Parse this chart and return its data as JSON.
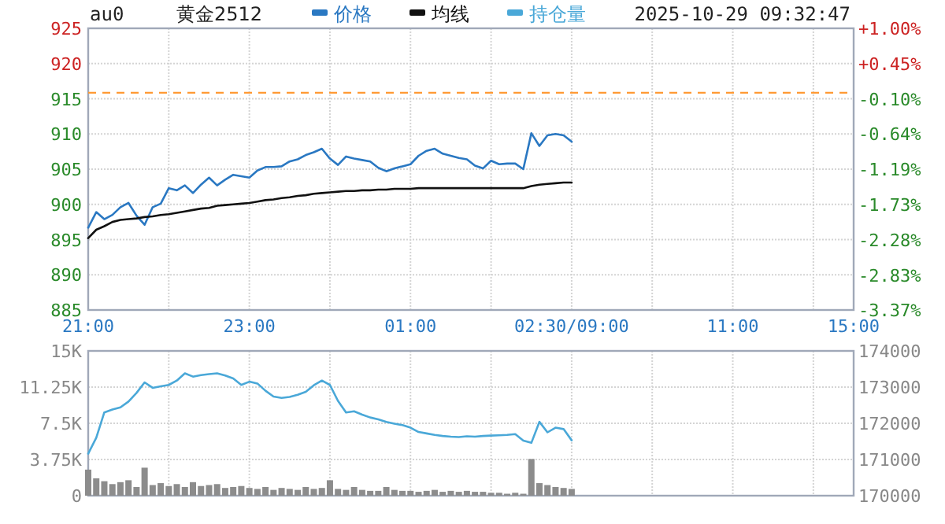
{
  "chart_data": [
    {
      "type": "line",
      "title": "au0",
      "subtitle": "黄金2512",
      "annotations": [
        "2025-10-29 09:32:47"
      ],
      "legend": "top",
      "grid": true,
      "categories": [
        "21:00",
        null,
        null,
        null,
        null,
        null,
        null,
        null,
        null,
        null,
        null,
        null,
        null,
        null,
        null,
        null,
        null,
        null,
        null,
        null,
        "23:00",
        null,
        null,
        null,
        null,
        null,
        null,
        null,
        null,
        null,
        null,
        null,
        null,
        null,
        null,
        null,
        null,
        null,
        null,
        null,
        "01:00",
        null,
        null,
        null,
        null,
        null,
        null,
        null,
        null,
        null,
        null,
        null,
        null,
        null,
        null,
        null,
        null,
        null,
        null,
        null,
        "02:30/09:00",
        null,
        null,
        null,
        null,
        null,
        null,
        null,
        null,
        null,
        null,
        null,
        null,
        null,
        null,
        null,
        null,
        null,
        null,
        null,
        "11:00",
        null,
        null,
        null,
        null,
        null,
        null,
        null,
        null,
        null,
        null,
        null,
        null,
        null,
        null,
        "15:00"
      ],
      "ylim": [
        885,
        925
      ],
      "yticks": [
        885,
        890,
        895,
        900,
        905,
        910,
        915,
        920,
        925
      ],
      "y2lim": [
        -3.37,
        1.0
      ],
      "y2ticks": [
        {
          "value": -3.37,
          "label": "-3.37%"
        },
        {
          "value": -2.83,
          "label": "-2.83%"
        },
        {
          "value": -2.28,
          "label": "-2.28%"
        },
        {
          "value": -1.73,
          "label": "-1.73%"
        },
        {
          "value": -1.19,
          "label": "-1.19%"
        },
        {
          "value": -0.64,
          "label": "-0.64%"
        },
        {
          "value": -0.1,
          "label": "-0.10%"
        },
        {
          "value": 0.45,
          "label": "+0.45%"
        },
        {
          "value": 1.0,
          "label": "+1.00%"
        }
      ],
      "ref_lines": [
        {
          "axis": "y",
          "value": 915.85,
          "color": "#ff9933",
          "line_style": "dashed"
        }
      ],
      "series": [
        {
          "name": "价格",
          "color": "#2a78c2",
          "values": [
            896.7,
            898.9,
            897.9,
            898.5,
            899.6,
            900.2,
            898.4,
            897.1,
            899.6,
            900.1,
            902.3,
            902,
            902.7,
            901.6,
            902.8,
            903.8,
            902.7,
            903.5,
            904.2,
            904,
            903.8,
            904.8,
            905.3,
            905.3,
            905.4,
            906.1,
            906.4,
            907,
            907.4,
            907.9,
            906.5,
            905.6,
            906.8,
            906.5,
            906.3,
            906.1,
            905.2,
            904.7,
            905.1,
            905.4,
            905.7,
            906.9,
            907.6,
            907.9,
            907.2,
            906.9,
            906.6,
            906.4,
            905.5,
            905.1,
            906.2,
            905.7,
            905.8,
            905.8,
            905,
            910.1,
            908.3,
            909.8,
            910,
            909.8,
            908.9,
            null,
            null,
            null,
            null,
            null,
            null,
            null,
            null,
            null,
            null,
            null,
            null,
            null,
            null,
            null,
            null,
            null,
            null,
            null,
            null,
            null,
            null,
            null,
            null,
            null,
            null,
            null,
            null,
            null,
            null,
            null,
            null,
            null,
            null,
            null
          ]
        },
        {
          "name": "均线",
          "color": "#111111",
          "values": [
            895.2,
            896.4,
            896.9,
            897.5,
            897.8,
            897.9,
            898,
            898.2,
            898.3,
            898.5,
            898.6,
            898.8,
            899,
            899.2,
            899.4,
            899.5,
            899.8,
            899.9,
            900,
            900.1,
            900.2,
            900.4,
            900.6,
            900.7,
            900.9,
            901,
            901.2,
            901.3,
            901.5,
            901.6,
            901.7,
            901.8,
            901.9,
            901.9,
            902,
            902,
            902.1,
            902.1,
            902.2,
            902.2,
            902.2,
            902.3,
            902.3,
            902.3,
            902.3,
            902.3,
            902.3,
            902.3,
            902.3,
            902.3,
            902.3,
            902.3,
            902.3,
            902.3,
            902.3,
            902.6,
            902.8,
            902.9,
            903,
            903.1,
            903.1,
            null,
            null,
            null,
            null,
            null,
            null,
            null,
            null,
            null,
            null,
            null,
            null,
            null,
            null,
            null,
            null,
            null,
            null,
            null,
            null,
            null,
            null,
            null,
            null,
            null,
            null,
            null,
            null,
            null,
            null,
            null,
            null,
            null,
            null,
            null
          ]
        }
      ]
    },
    {
      "type": "line",
      "legend": "top",
      "grid": true,
      "tick_labels": "y",
      "categories": [
        null,
        null,
        null,
        null,
        null,
        null,
        null,
        null,
        null,
        null,
        null,
        null,
        null,
        null,
        null,
        null,
        null,
        null,
        null,
        null,
        null,
        null,
        null,
        null,
        null,
        null,
        null,
        null,
        null,
        null,
        null,
        null,
        null,
        null,
        null,
        null,
        null,
        null,
        null,
        null,
        null,
        null,
        null,
        null,
        null,
        null,
        null,
        null,
        null,
        null,
        null,
        null,
        null,
        null,
        null,
        null,
        null,
        null,
        null,
        null,
        null,
        null,
        null,
        null,
        null,
        null,
        null,
        null,
        null,
        null,
        null,
        null,
        null,
        null,
        null,
        null,
        null,
        null,
        null,
        null,
        null,
        null,
        null,
        null,
        null,
        null,
        null,
        null,
        null,
        null,
        null,
        null,
        null,
        null,
        null,
        null
      ],
      "ylim": [
        0,
        15000
      ],
      "yticks": [
        0,
        {
          "value": 3750,
          "label": "3.75K"
        },
        {
          "value": 7500,
          "label": "7.5K"
        },
        {
          "value": 11250,
          "label": "11.25K"
        },
        {
          "value": 15000,
          "label": "15K"
        }
      ],
      "y2lim": [
        170000,
        174000
      ],
      "y2ticks": [
        170000,
        171000,
        172000,
        173000,
        174000
      ],
      "series": [
        {
          "type": "bar",
          "color": "#8c8c8c",
          "values": [
            2700,
            1800,
            1500,
            1200,
            1400,
            1600,
            900,
            2900,
            1100,
            1300,
            1000,
            1200,
            900,
            1400,
            1000,
            1100,
            1200,
            800,
            900,
            1000,
            800,
            700,
            900,
            600,
            800,
            700,
            600,
            900,
            700,
            800,
            1600,
            700,
            600,
            900,
            600,
            500,
            500,
            900,
            600,
            500,
            500,
            400,
            500,
            600,
            400,
            500,
            400,
            500,
            400,
            400,
            300,
            300,
            200,
            300,
            200,
            3800,
            1300,
            1100,
            900,
            800,
            700,
            null,
            null,
            null,
            null,
            null,
            null,
            null,
            null,
            null,
            null,
            null,
            null,
            null,
            null,
            null,
            null,
            null,
            null,
            null,
            null,
            null,
            null,
            null,
            null,
            null,
            null,
            null,
            null,
            null,
            null,
            null,
            null,
            null,
            null,
            null
          ]
        },
        {
          "name": "持仓量",
          "type": "line",
          "axis": "y2",
          "color": "#4aa8d8",
          "values": [
            171160,
            171600,
            172300,
            172380,
            172440,
            172600,
            172840,
            173130,
            172980,
            173020,
            173060,
            173180,
            173380,
            173290,
            173330,
            173360,
            173380,
            173320,
            173240,
            173060,
            173150,
            173100,
            172900,
            172740,
            172700,
            172730,
            172790,
            172870,
            173050,
            173180,
            173060,
            172620,
            172300,
            172330,
            172240,
            172160,
            172110,
            172040,
            171990,
            171950,
            171880,
            171760,
            171720,
            171680,
            171650,
            171630,
            171620,
            171640,
            171630,
            171650,
            171660,
            171670,
            171680,
            171700,
            171520,
            171460,
            172040,
            171750,
            171880,
            171840,
            171530,
            null,
            null,
            null,
            null,
            null,
            null,
            null,
            null,
            null,
            null,
            null,
            null,
            null,
            null,
            null,
            null,
            null,
            null,
            null,
            null,
            null,
            null,
            null,
            null,
            null,
            null,
            null,
            null,
            null,
            null,
            null,
            null,
            null,
            null,
            null
          ]
        }
      ]
    }
  ]
}
